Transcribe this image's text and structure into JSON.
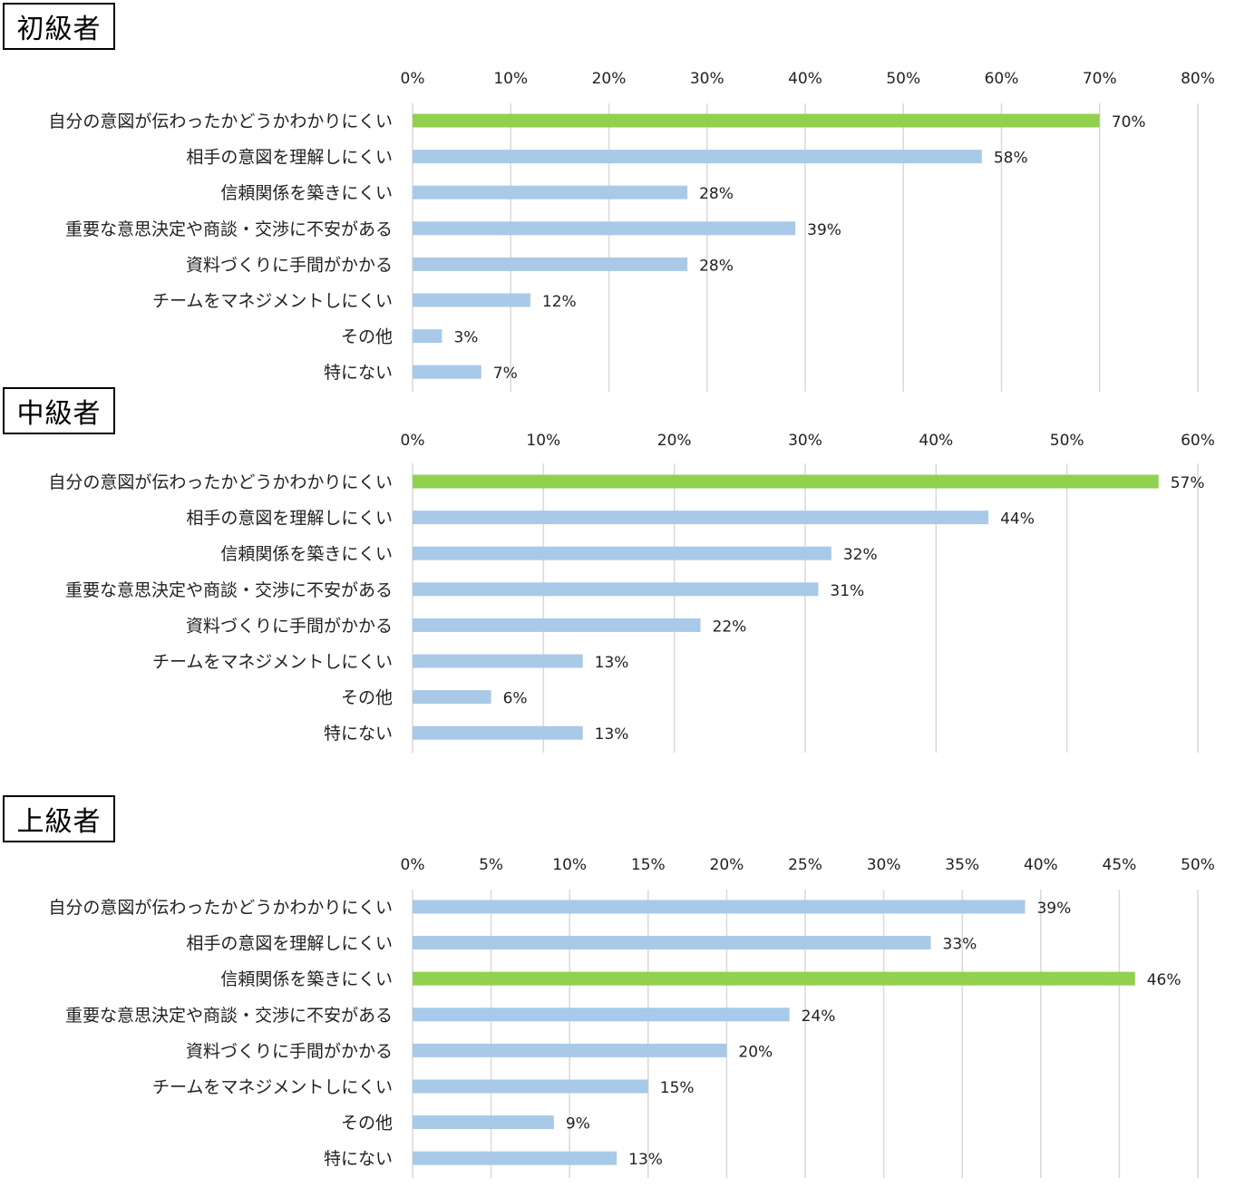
{
  "colors": {
    "highlight": "#92d050",
    "bar": "#a9c9e8",
    "grid": "#d9d9d9",
    "text": "#222222"
  },
  "chart_data": [
    {
      "type": "bar",
      "orientation": "horizontal",
      "title": "初級者",
      "categories": [
        "自分の意図が伝わったかどうかわかりにくい",
        "相手の意図を理解しにくい",
        "信頼関係を築きにくい",
        "重要な意思決定や商談・交渉に不安がある",
        "資料づくりに手間がかかる",
        "チームをマネジメントしにくい",
        "その他",
        "特にない"
      ],
      "values": [
        70,
        58,
        28,
        39,
        28,
        12,
        3,
        7
      ],
      "value_labels": [
        "70%",
        "58%",
        "28%",
        "39%",
        "28%",
        "12%",
        "3%",
        "7%"
      ],
      "highlight_index": 0,
      "xlim": [
        0,
        80
      ],
      "xticks": [
        "0%",
        "10%",
        "20%",
        "30%",
        "40%",
        "50%",
        "60%",
        "70%",
        "80%"
      ],
      "axis_position": "top",
      "grid": true,
      "legend": "none"
    },
    {
      "type": "bar",
      "orientation": "horizontal",
      "title": "中級者",
      "categories": [
        "自分の意図が伝わったかどうかわかりにくい",
        "相手の意図を理解しにくい",
        "信頼関係を築きにくい",
        "重要な意思決定や商談・交渉に不安がある",
        "資料づくりに手間がかかる",
        "チームをマネジメントしにくい",
        "その他",
        "特にない"
      ],
      "values": [
        57,
        44,
        32,
        31,
        22,
        13,
        6,
        13
      ],
      "value_labels": [
        "57%",
        "44%",
        "32%",
        "31%",
        "22%",
        "13%",
        "6%",
        "13%"
      ],
      "highlight_index": 0,
      "xlim": [
        0,
        60
      ],
      "xticks": [
        "0%",
        "10%",
        "20%",
        "30%",
        "40%",
        "50%",
        "60%"
      ],
      "axis_position": "top",
      "grid": true,
      "legend": "none"
    },
    {
      "type": "bar",
      "orientation": "horizontal",
      "title": "上級者",
      "categories": [
        "自分の意図が伝わったかどうかわかりにくい",
        "相手の意図を理解しにくい",
        "信頼関係を築きにくい",
        "重要な意思決定や商談・交渉に不安がある",
        "資料づくりに手間がかかる",
        "チームをマネジメントしにくい",
        "その他",
        "特にない"
      ],
      "values": [
        39,
        33,
        46,
        24,
        20,
        15,
        9,
        13
      ],
      "value_labels": [
        "39%",
        "33%",
        "46%",
        "24%",
        "20%",
        "15%",
        "9%",
        "13%"
      ],
      "highlight_index": 2,
      "xlim": [
        0,
        50
      ],
      "xticks": [
        "0%",
        "5%",
        "10%",
        "15%",
        "20%",
        "25%",
        "30%",
        "35%",
        "40%",
        "45%",
        "50%"
      ],
      "axis_position": "top",
      "grid": true,
      "legend": "none"
    }
  ]
}
